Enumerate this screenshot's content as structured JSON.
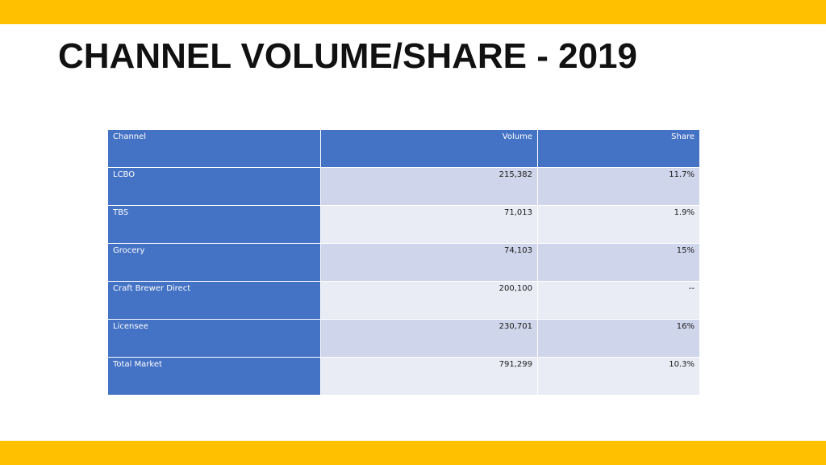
{
  "title": "CHANNEL VOLUME/SHARE - 2019",
  "colors": {
    "accent_bar": "#FFC000",
    "header_bg": "#4472C4",
    "header_text": "#FFFFFF",
    "row_odd_bg": "#CFD5EA",
    "row_even_bg": "#E9EBF5",
    "body_text": "#1A1A1A"
  },
  "table": {
    "headers": [
      "Channel",
      "Volume",
      "Share"
    ],
    "rows": [
      {
        "channel": "LCBO",
        "volume": "215,382",
        "share": "11.7%"
      },
      {
        "channel": "TBS",
        "volume": "71,013",
        "share": "1.9%"
      },
      {
        "channel": "Grocery",
        "volume": "74,103",
        "share": "15%"
      },
      {
        "channel": "Craft Brewer Direct",
        "volume": "200,100",
        "share": "--"
      },
      {
        "channel": "Licensee",
        "volume": "230,701",
        "share": "16%"
      },
      {
        "channel": "Total Market",
        "volume": "791,299",
        "share": "10.3%"
      }
    ]
  }
}
